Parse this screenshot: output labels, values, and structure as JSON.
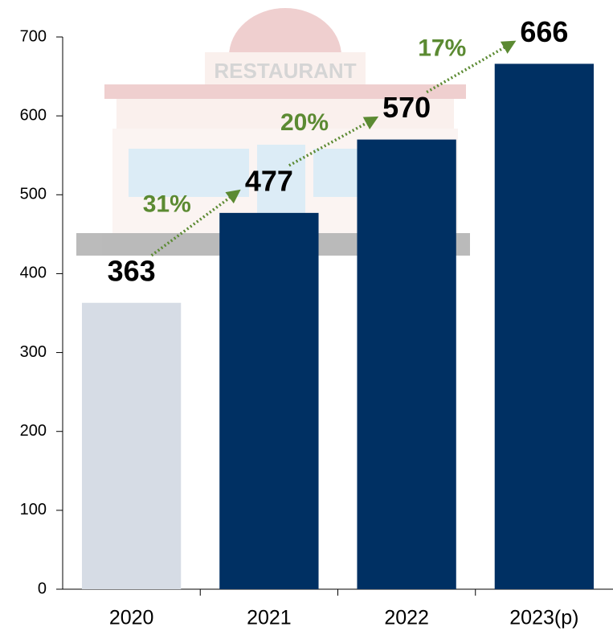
{
  "chart_data": {
    "type": "bar",
    "categories": [
      "2020",
      "2021",
      "2022",
      "2023(p)"
    ],
    "values": [
      363,
      477,
      570,
      666
    ],
    "colors": [
      "#d6dce5",
      "#003063",
      "#003063",
      "#003063"
    ],
    "ylim": [
      0,
      700
    ],
    "yticks": [
      0,
      100,
      200,
      300,
      400,
      500,
      600,
      700
    ],
    "grid": false,
    "annotations": [
      "31%",
      "20%",
      "17%"
    ],
    "annotation_color": "#5b8a32",
    "illustration_label": "RESTAURANT"
  }
}
